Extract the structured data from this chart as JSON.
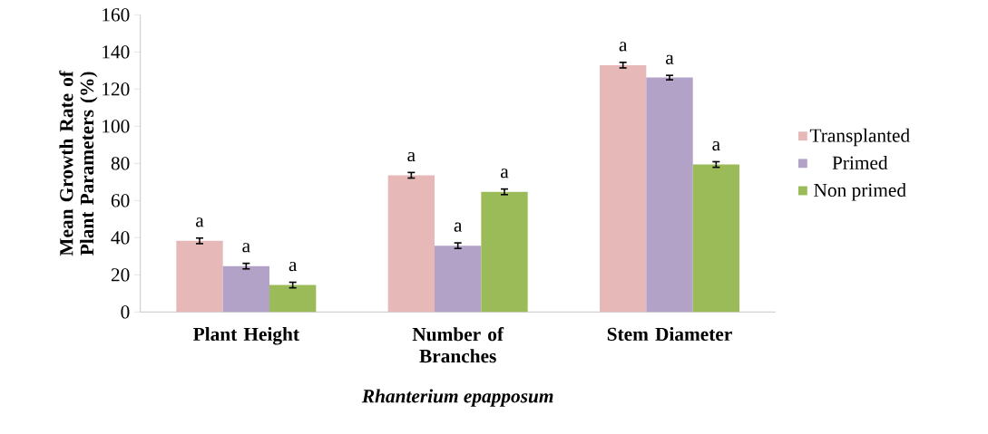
{
  "chart_data": {
    "type": "bar",
    "categories": [
      "Plant Height",
      "Number of Branches",
      "Stem Diameter"
    ],
    "xlabel": "Rhanterium epapposum",
    "ylabel": "Mean Growth Rate of Plant Parameters (%)",
    "ylim": [
      0,
      160
    ],
    "yticks": [
      0,
      20,
      40,
      60,
      80,
      100,
      120,
      140,
      160
    ],
    "grid": false,
    "legend": "right",
    "series": [
      {
        "name": "Transplanted",
        "color": "#e6b8b7",
        "values": [
          38.3,
          73.6,
          132.9
        ],
        "errors": [
          1.5,
          1.5,
          1.5
        ],
        "value_labels": [
          "a",
          "a",
          "a"
        ]
      },
      {
        "name": "Primed",
        "color": "#b3a2c7",
        "values": [
          24.7,
          35.7,
          126.2
        ],
        "errors": [
          1.5,
          1.5,
          1.2
        ],
        "value_labels": [
          "a",
          "a",
          "a"
        ]
      },
      {
        "name": "Non primed",
        "color": "#9bbb59",
        "values": [
          14.5,
          64.7,
          79.4
        ],
        "errors": [
          1.5,
          1.5,
          1.5
        ],
        "value_labels": [
          "a",
          "a",
          "a"
        ]
      }
    ]
  }
}
